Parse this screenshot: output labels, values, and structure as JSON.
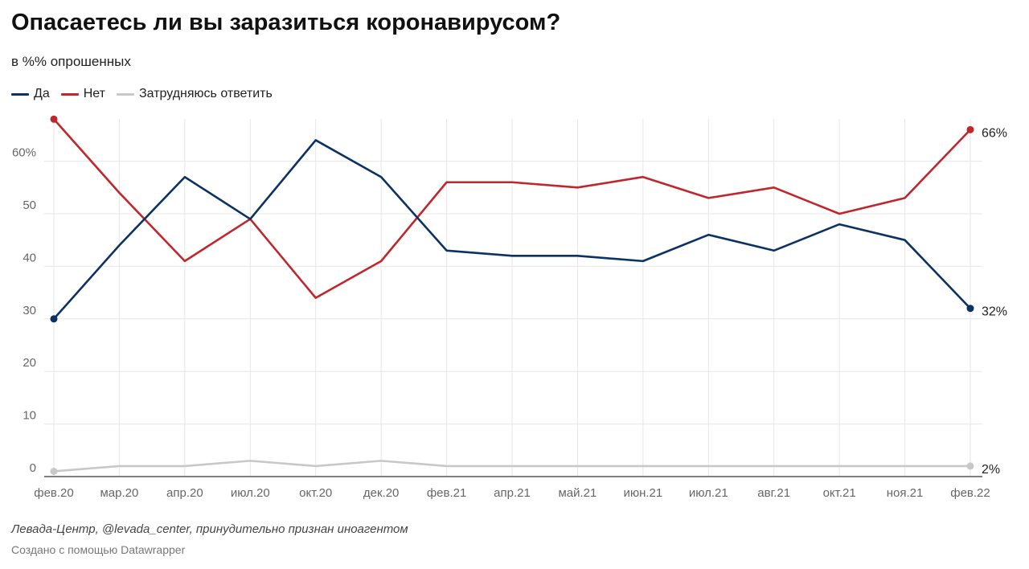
{
  "header": {
    "title": "Опасаетесь ли вы заразиться коронавирусом?",
    "subtitle": "в %% опрошенных"
  },
  "footer": {
    "source": "Левада-Центр, @levada_center, принудительно признан иноагентом",
    "credit": "Создано с помощью Datawrapper"
  },
  "chart_data": {
    "type": "line",
    "title": "Опасаетесь ли вы заразиться коронавирусом?",
    "subtitle": "в %% опрошенных",
    "xlabel": "",
    "ylabel": "",
    "ylim": [
      0,
      68
    ],
    "yticks": [
      0,
      10,
      20,
      30,
      40,
      50,
      60
    ],
    "ytick_labels": [
      "0",
      "10",
      "20",
      "30",
      "40",
      "50",
      "60%"
    ],
    "grid": true,
    "legend_position": "top-left",
    "categories": [
      "фев.20",
      "мар.20",
      "апр.20",
      "июл.20",
      "окт.20",
      "дек.20",
      "фев.21",
      "апр.21",
      "май.21",
      "июн.21",
      "июл.21",
      "авг.21",
      "окт.21",
      "ноя.21",
      "фев.22"
    ],
    "series": [
      {
        "name": "Да",
        "color": "#0b3263",
        "values": [
          30,
          44,
          57,
          49,
          64,
          57,
          43,
          42,
          42,
          41,
          46,
          43,
          48,
          45,
          32
        ],
        "end_label": "32%"
      },
      {
        "name": "Нет",
        "color": "#c0272d",
        "values": [
          68,
          54,
          41,
          49,
          34,
          41,
          56,
          56,
          55,
          57,
          53,
          55,
          50,
          53,
          66
        ],
        "end_label": "66%"
      },
      {
        "name": "Затрудняюсь ответить",
        "color": "#c8c8c8",
        "values": [
          1,
          2,
          2,
          3,
          2,
          3,
          2,
          2,
          2,
          2,
          2,
          2,
          2,
          2,
          2
        ],
        "end_label": "2%"
      }
    ]
  }
}
